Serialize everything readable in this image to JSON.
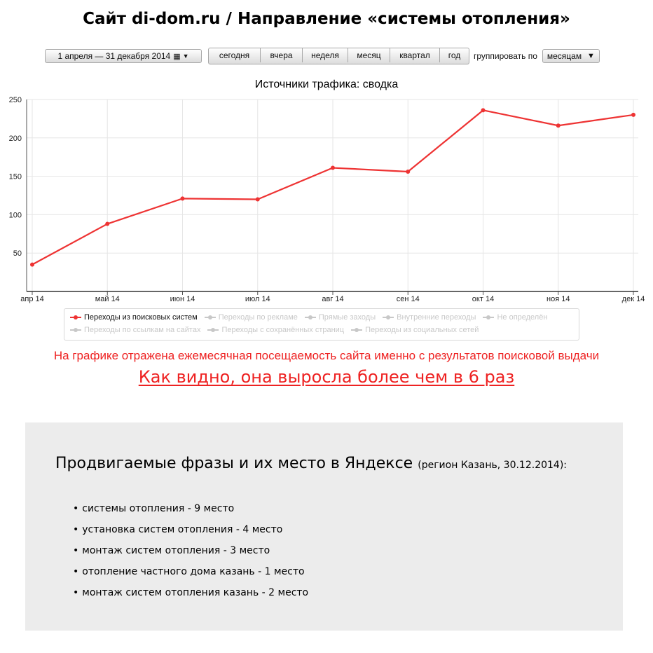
{
  "page": {
    "title": "Сайт di-dom.ru / Направление «системы отопления»"
  },
  "toolbar": {
    "date_range": "1 апреля — 31 декабря 2014",
    "periods": [
      "сегодня",
      "вчера",
      "неделя",
      "месяц",
      "квартал",
      "год"
    ],
    "group_label": "группировать по",
    "group_value": "месяцам"
  },
  "chart_data": {
    "type": "line",
    "title": "Источники трафика: сводка",
    "categories": [
      "апр 14",
      "май 14",
      "июн 14",
      "июл 14",
      "авг 14",
      "сен 14",
      "окт 14",
      "ноя 14",
      "дек 14"
    ],
    "series": [
      {
        "name": "Переходы из поисковых систем",
        "values": [
          35,
          88,
          121,
          120,
          161,
          156,
          236,
          216,
          230
        ],
        "color": "#ee3333",
        "active": true
      }
    ],
    "yticks": [
      50,
      100,
      150,
      200,
      250
    ],
    "ylim": [
      0,
      250
    ],
    "grid": true,
    "legend_position": "bottom"
  },
  "legend": {
    "row1": [
      {
        "label": "Переходы из поисковых систем",
        "active": true
      },
      {
        "label": "Переходы по рекламе",
        "active": false
      },
      {
        "label": "Прямые заходы",
        "active": false
      },
      {
        "label": "Внутренние переходы",
        "active": false
      },
      {
        "label": "Не определён",
        "active": false
      }
    ],
    "row2": [
      {
        "label": "Переходы по ссылкам на сайтах",
        "active": false
      },
      {
        "label": "Переходы с сохранённых страниц",
        "active": false
      },
      {
        "label": "Переходы из социальных сетей",
        "active": false
      }
    ]
  },
  "note": "На графике отражена ежемесячная посещаемость сайта именно с результатов поисковой выдачи",
  "headline": "Как видно, она выросла более чем в 6 раз",
  "phrases": {
    "title": "Продвигаемые фразы и их место в Яндексе",
    "subtitle": "(регион Казань, 30.12.2014):",
    "items": [
      "системы отопления - 9 место",
      "установка систем отопления - 4 место",
      "монтаж систем отопления - 3 место",
      "отопление частного дома казань - 1 место",
      "монтаж систем отопления казань - 2 место"
    ]
  },
  "colors": {
    "accent_red": "#ee3333",
    "box_background": "#ececec"
  }
}
